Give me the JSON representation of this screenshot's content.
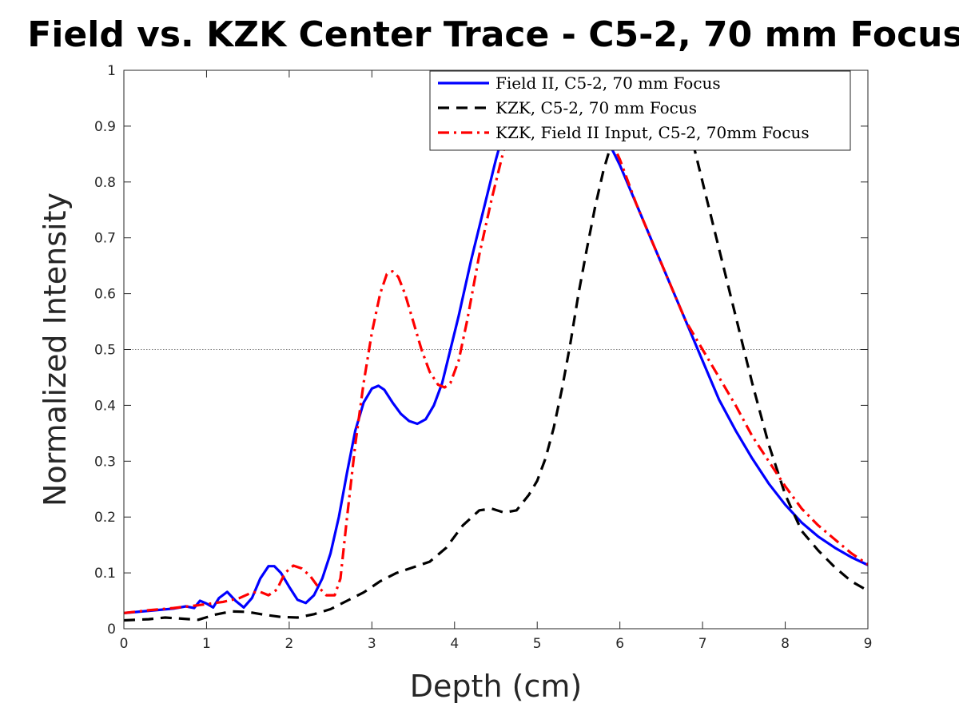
{
  "chart_data": {
    "type": "line",
    "title": "Field vs. KZK Center Trace - C5-2, 70 mm Focus",
    "xlabel": "Depth (cm)",
    "ylabel": "Normalized Intensity",
    "xlim": [
      0,
      9
    ],
    "ylim": [
      0,
      1
    ],
    "xticks": [
      0,
      1,
      2,
      3,
      4,
      5,
      6,
      7,
      8,
      9
    ],
    "yticks": [
      0,
      0.1,
      0.2,
      0.3,
      0.4,
      0.5,
      0.6,
      0.7,
      0.8,
      0.9,
      1
    ],
    "ytick_labels": [
      "0",
      "0.1",
      "0.2",
      "0.3",
      "0.4",
      "0.5",
      "0.6",
      "0.7",
      "0.8",
      "0.9",
      "1"
    ],
    "grid": false,
    "reference_line": {
      "y": 0.5,
      "style": "dotted",
      "color": "#7f7f7f"
    },
    "legend_position": "top-right",
    "series": [
      {
        "name": "Field II, C5-2, 70 mm Focus",
        "color": "#0000ff",
        "dash": "solid",
        "x": [
          0,
          0.3,
          0.6,
          0.75,
          0.85,
          0.92,
          1.0,
          1.08,
          1.15,
          1.25,
          1.35,
          1.45,
          1.55,
          1.65,
          1.75,
          1.82,
          1.9,
          2.0,
          2.1,
          2.2,
          2.3,
          2.4,
          2.5,
          2.6,
          2.7,
          2.8,
          2.9,
          3.0,
          3.08,
          3.15,
          3.25,
          3.35,
          3.45,
          3.55,
          3.65,
          3.75,
          3.85,
          3.95,
          4.05,
          4.2,
          4.35,
          4.5,
          4.65,
          4.8,
          4.95,
          5.05,
          5.15,
          5.3,
          5.45,
          5.6,
          5.8,
          6.0,
          6.2,
          6.4,
          6.6,
          6.8,
          7.0,
          7.2,
          7.4,
          7.6,
          7.8,
          8.0,
          8.2,
          8.4,
          8.6,
          8.8,
          9.0
        ],
        "y": [
          0.028,
          0.032,
          0.036,
          0.04,
          0.037,
          0.05,
          0.045,
          0.038,
          0.055,
          0.066,
          0.05,
          0.038,
          0.055,
          0.09,
          0.112,
          0.112,
          0.1,
          0.075,
          0.052,
          0.046,
          0.06,
          0.09,
          0.135,
          0.2,
          0.28,
          0.355,
          0.405,
          0.43,
          0.435,
          0.428,
          0.405,
          0.385,
          0.372,
          0.367,
          0.375,
          0.4,
          0.44,
          0.5,
          0.56,
          0.66,
          0.75,
          0.84,
          0.92,
          0.97,
          0.995,
          1.0,
          0.998,
          0.99,
          0.97,
          0.94,
          0.89,
          0.83,
          0.76,
          0.69,
          0.62,
          0.55,
          0.48,
          0.41,
          0.355,
          0.305,
          0.26,
          0.222,
          0.19,
          0.165,
          0.145,
          0.128,
          0.114
        ]
      },
      {
        "name": "KZK, C5-2, 70 mm Focus",
        "color": "#000000",
        "dash": "dashed",
        "x": [
          0,
          0.3,
          0.5,
          0.7,
          0.9,
          1.1,
          1.3,
          1.5,
          1.7,
          1.9,
          2.1,
          2.3,
          2.5,
          2.7,
          2.9,
          3.1,
          3.3,
          3.5,
          3.7,
          3.9,
          4.1,
          4.3,
          4.45,
          4.6,
          4.75,
          4.9,
          5.0,
          5.1,
          5.2,
          5.3,
          5.4,
          5.5,
          5.6,
          5.7,
          5.8,
          5.9,
          6.0,
          6.1,
          6.2,
          6.3,
          6.4,
          6.5,
          6.6,
          6.7,
          6.8,
          6.9,
          7.0,
          7.2,
          7.4,
          7.6,
          7.8,
          8.0,
          8.2,
          8.4,
          8.6,
          8.8,
          9.0
        ],
        "y": [
          0.015,
          0.017,
          0.02,
          0.018,
          0.016,
          0.025,
          0.031,
          0.03,
          0.025,
          0.021,
          0.02,
          0.026,
          0.035,
          0.05,
          0.065,
          0.085,
          0.1,
          0.11,
          0.12,
          0.145,
          0.185,
          0.212,
          0.215,
          0.208,
          0.212,
          0.24,
          0.265,
          0.305,
          0.36,
          0.43,
          0.51,
          0.6,
          0.68,
          0.755,
          0.82,
          0.87,
          0.91,
          0.94,
          0.96,
          0.975,
          0.985,
          0.99,
          0.975,
          0.94,
          0.9,
          0.86,
          0.8,
          0.68,
          0.56,
          0.44,
          0.33,
          0.24,
          0.175,
          0.14,
          0.11,
          0.085,
          0.068
        ]
      },
      {
        "name": "KZK, Field II Input, C5-2, 70mm Focus",
        "color": "#ff0000",
        "dash": "dashdot",
        "x": [
          0,
          0.3,
          0.6,
          0.9,
          1.2,
          1.4,
          1.55,
          1.65,
          1.75,
          1.85,
          1.95,
          2.05,
          2.15,
          2.25,
          2.35,
          2.45,
          2.55,
          2.62,
          2.7,
          2.8,
          2.9,
          3.0,
          3.1,
          3.18,
          3.25,
          3.32,
          3.4,
          3.5,
          3.6,
          3.7,
          3.8,
          3.88,
          3.95,
          4.05,
          4.15,
          4.3,
          4.45,
          4.6,
          4.75,
          4.9,
          5.05,
          5.2,
          5.35,
          5.5,
          5.65,
          5.8,
          6.0,
          6.2,
          6.4,
          6.6,
          6.8,
          7.0,
          7.2,
          7.4,
          7.6,
          7.8,
          8.0,
          8.2,
          8.4,
          8.6,
          8.8,
          9.0
        ],
        "y": [
          0.028,
          0.033,
          0.037,
          0.042,
          0.048,
          0.055,
          0.065,
          0.066,
          0.06,
          0.07,
          0.1,
          0.113,
          0.108,
          0.095,
          0.075,
          0.06,
          0.06,
          0.09,
          0.2,
          0.33,
          0.44,
          0.53,
          0.6,
          0.635,
          0.64,
          0.63,
          0.6,
          0.55,
          0.5,
          0.46,
          0.437,
          0.432,
          0.44,
          0.48,
          0.55,
          0.67,
          0.77,
          0.86,
          0.93,
          0.975,
          0.995,
          1.0,
          0.99,
          0.97,
          0.94,
          0.905,
          0.84,
          0.76,
          0.69,
          0.62,
          0.55,
          0.5,
          0.45,
          0.4,
          0.345,
          0.3,
          0.255,
          0.215,
          0.185,
          0.16,
          0.135,
          0.115
        ]
      }
    ]
  }
}
